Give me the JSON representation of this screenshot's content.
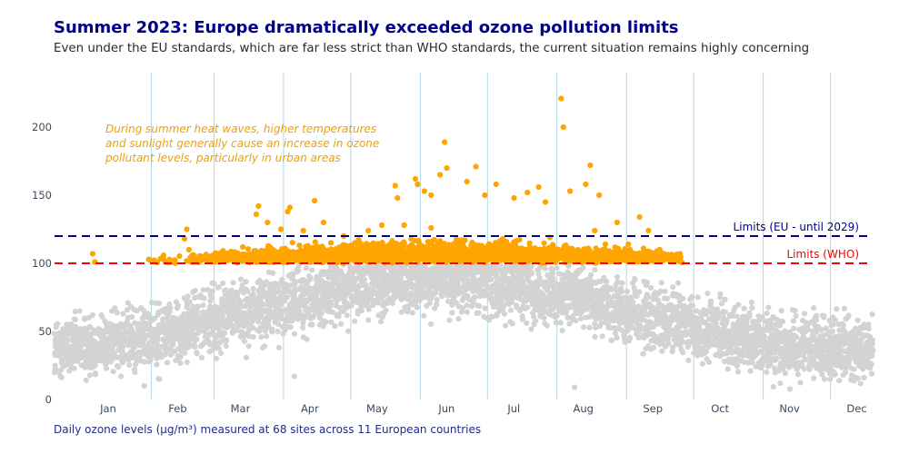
{
  "title": "Summer 2023: Europe dramatically exceeded ozone pollution limits",
  "subtitle": "Even under the EU standards, which are far less strict than WHO standards, the current situation remains highly concerning",
  "footnote": "Daily ozone levels (μg/m³) measured at 68 sites across 11 European countries",
  "colors": {
    "below_limit": "#d3d3d3",
    "above_limit": "#ffa500",
    "eu_line": "#00008b",
    "who_line": "#ff0000",
    "month_grid": "#add8e6"
  },
  "chart_data": {
    "type": "scatter",
    "title": "Summer 2023: Europe dramatically exceeded ozone pollution limits",
    "subtitle": "Even under the EU standards, which are far less strict than WHO standards, the current situation remains highly concerning",
    "xlabel": "",
    "ylabel": "",
    "x_type": "date",
    "xlim": [
      "2023-01-01",
      "2023-12-31"
    ],
    "ylim": [
      0,
      240
    ],
    "x_ticks": [
      "Jan",
      "Feb",
      "Mar",
      "Apr",
      "May",
      "Jun",
      "Jul",
      "Aug",
      "Sep",
      "Oct",
      "Nov",
      "Dec"
    ],
    "y_ticks": [
      0,
      50,
      100,
      150,
      200
    ],
    "grid": "vertical month separators",
    "reference_lines": [
      {
        "label": "Limits (EU - until 2029)",
        "value": 120,
        "color": "#00008b",
        "style": "dashed"
      },
      {
        "label": "Limits (WHO)",
        "value": 100,
        "color": "#ff0000",
        "style": "dashed"
      }
    ],
    "annotation": [
      "During summer heat waves, higher temperatures",
      "and sunlight generally cause an increase in ozone",
      "pollutant levels, particularly in urban areas"
    ],
    "series": [
      {
        "color": "#ffa500",
        "points": [
          [
            "2023-01-18",
            107
          ],
          [
            "2023-01-19",
            101
          ],
          [
            "2023-02-28",
            118
          ],
          [
            "2023-03-01",
            125
          ],
          [
            "2023-03-02",
            110
          ],
          [
            "2023-03-26",
            112
          ],
          [
            "2023-04-01",
            136
          ],
          [
            "2023-04-02",
            142
          ],
          [
            "2023-04-06",
            130
          ],
          [
            "2023-04-12",
            125
          ],
          [
            "2023-04-15",
            138
          ],
          [
            "2023-04-16",
            141
          ],
          [
            "2023-04-22",
            124
          ],
          [
            "2023-04-27",
            146
          ],
          [
            "2023-05-01",
            130
          ],
          [
            "2023-05-10",
            120
          ],
          [
            "2023-05-21",
            124
          ],
          [
            "2023-05-27",
            128
          ],
          [
            "2023-06-02",
            157
          ],
          [
            "2023-06-03",
            148
          ],
          [
            "2023-06-11",
            162
          ],
          [
            "2023-06-12",
            158
          ],
          [
            "2023-06-15",
            153
          ],
          [
            "2023-06-18",
            150
          ],
          [
            "2023-06-22",
            165
          ],
          [
            "2023-06-24",
            189
          ],
          [
            "2023-06-25",
            170
          ],
          [
            "2023-07-04",
            160
          ],
          [
            "2023-07-08",
            171
          ],
          [
            "2023-07-12",
            150
          ],
          [
            "2023-07-17",
            158
          ],
          [
            "2023-07-25",
            148
          ],
          [
            "2023-07-31",
            152
          ],
          [
            "2023-08-05",
            156
          ],
          [
            "2023-08-08",
            145
          ],
          [
            "2023-08-15",
            221
          ],
          [
            "2023-08-16",
            200
          ],
          [
            "2023-08-19",
            153
          ],
          [
            "2023-08-26",
            158
          ],
          [
            "2023-08-28",
            172
          ],
          [
            "2023-09-01",
            150
          ],
          [
            "2023-09-09",
            130
          ],
          [
            "2023-09-19",
            134
          ],
          [
            "2023-09-23",
            124
          ],
          [
            "2023-09-28",
            110
          ],
          [
            "2023-05-15",
            115
          ],
          [
            "2023-05-29",
            112
          ],
          [
            "2023-06-06",
            128
          ],
          [
            "2023-06-18",
            126
          ],
          [
            "2023-07-01",
            117
          ],
          [
            "2023-07-20",
            118
          ],
          [
            "2023-08-10",
            119
          ],
          [
            "2023-08-30",
            124
          ],
          [
            "2023-09-14",
            114
          ],
          [
            "2023-10-02",
            104
          ]
        ]
      },
      {
        "color": "#d3d3d3",
        "points": [
          [
            "2023-01-06",
            48
          ],
          [
            "2023-01-18",
            62
          ],
          [
            "2023-02-02",
            55
          ],
          [
            "2023-02-16",
            40
          ],
          [
            "2023-03-01",
            72
          ],
          [
            "2023-03-18",
            68
          ],
          [
            "2023-04-02",
            80
          ],
          [
            "2023-04-21",
            76
          ],
          [
            "2023-05-08",
            85
          ],
          [
            "2023-05-26",
            82
          ],
          [
            "2023-06-12",
            88
          ],
          [
            "2023-06-30",
            84
          ],
          [
            "2023-07-18",
            80
          ],
          [
            "2023-08-04",
            78
          ],
          [
            "2023-08-22",
            75
          ],
          [
            "2023-09-08",
            70
          ],
          [
            "2023-09-26",
            64
          ],
          [
            "2023-10-14",
            55
          ],
          [
            "2023-11-01",
            48
          ],
          [
            "2023-11-20",
            42
          ],
          [
            "2023-12-08",
            45
          ],
          [
            "2023-12-26",
            50
          ],
          [
            "2023-02-10",
            10
          ],
          [
            "2023-04-18",
            17
          ],
          [
            "2023-08-21",
            9
          ]
        ]
      }
    ]
  }
}
